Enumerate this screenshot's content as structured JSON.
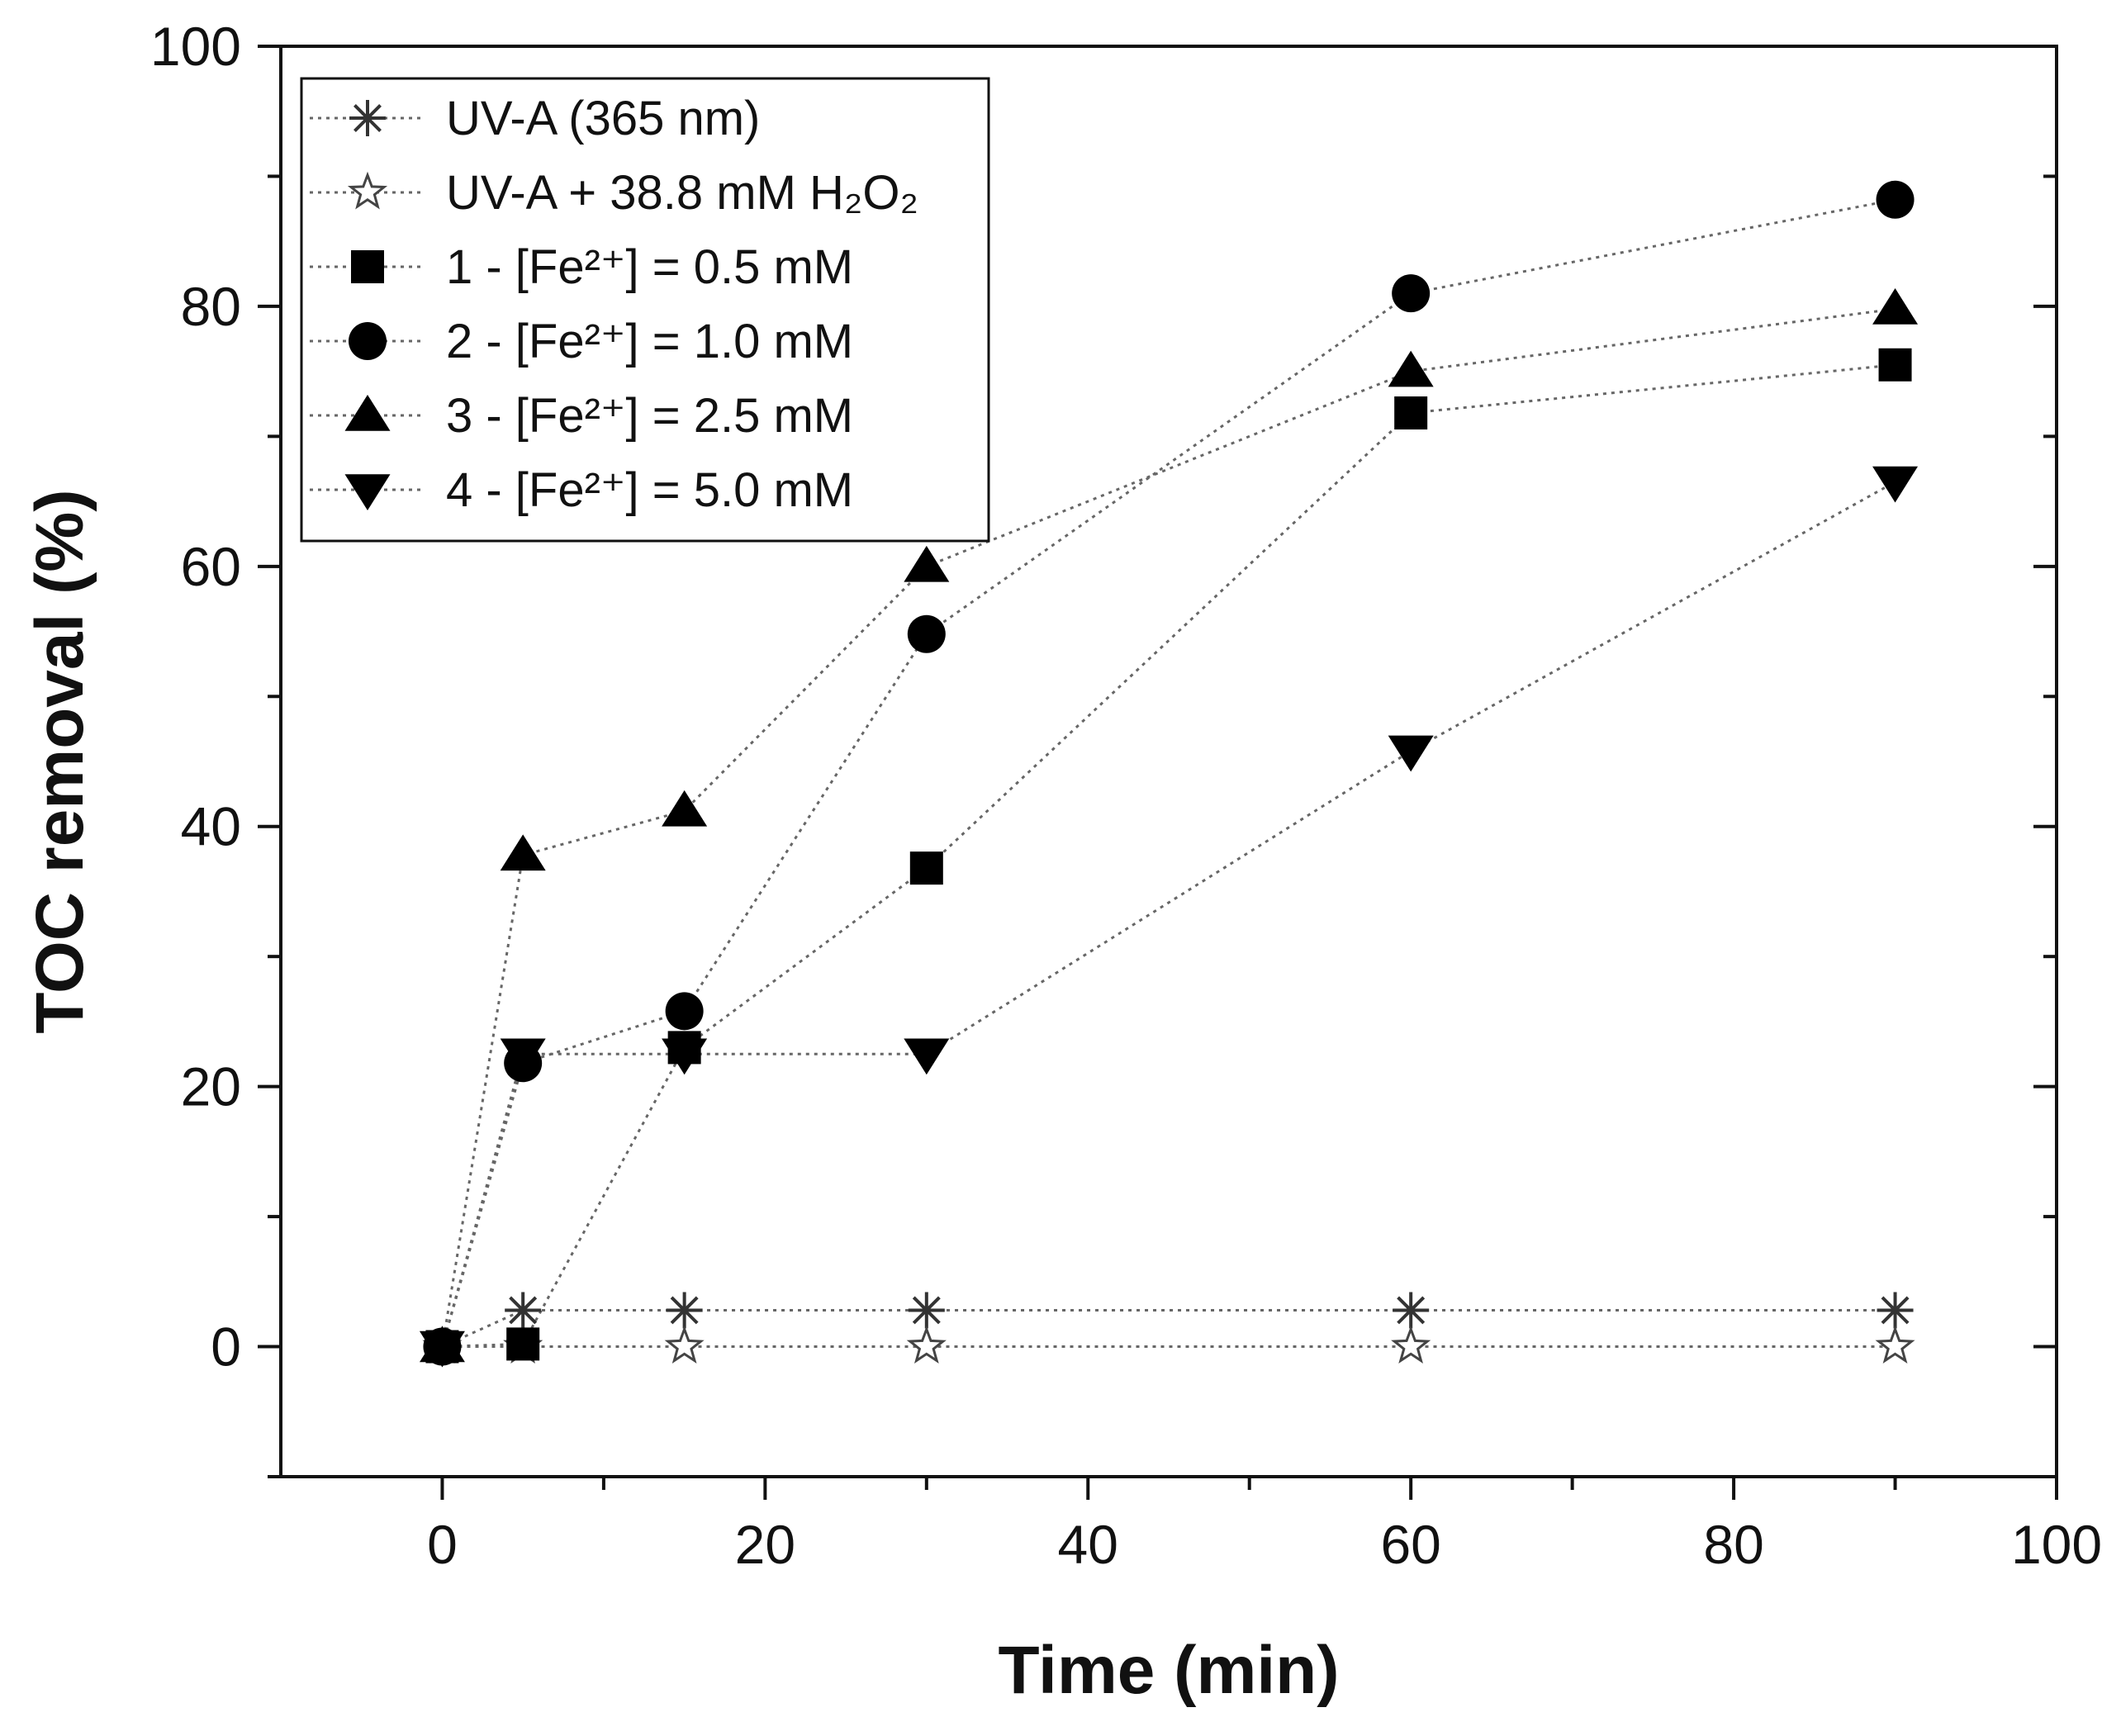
{
  "chart_data": {
    "type": "line",
    "title": "",
    "xlabel": "Time (min)",
    "ylabel": "TOC removal (%)",
    "xlim": [
      -10,
      100
    ],
    "ylim": [
      -10,
      100
    ],
    "xticks": [
      0,
      20,
      40,
      60,
      80,
      100
    ],
    "yticks": [
      0,
      20,
      40,
      60,
      80,
      100
    ],
    "x": [
      0,
      5,
      15,
      30,
      60,
      90
    ],
    "legend_position": "top-left",
    "series": [
      {
        "name": "UV-A (365 nm)",
        "marker": "asterisk",
        "values": [
          0,
          2.8,
          2.8,
          2.8,
          2.8,
          2.8
        ]
      },
      {
        "name": "UV-A + 38.8 mM H₂O₂",
        "marker": "open-star",
        "values": [
          0,
          0,
          0,
          0,
          0,
          0
        ]
      },
      {
        "name": "1 - [Fe²⁺] = 0.5 mM",
        "marker": "square",
        "values": [
          0,
          0.2,
          23,
          36.8,
          71.8,
          75.5
        ]
      },
      {
        "name": "2 - [Fe²⁺] = 1.0 mM",
        "marker": "circle",
        "values": [
          0,
          21.8,
          25.8,
          54.8,
          81,
          88.2
        ]
      },
      {
        "name": "3 - [Fe²⁺] = 2.5 mM",
        "marker": "triangle-up",
        "values": [
          0,
          37.8,
          41.2,
          60,
          75,
          79.8
        ]
      },
      {
        "name": "4 - [Fe²⁺] = 5.0 mM",
        "marker": "triangle-down",
        "values": [
          0,
          22.5,
          22.5,
          22.5,
          45.8,
          66.5
        ]
      }
    ]
  }
}
